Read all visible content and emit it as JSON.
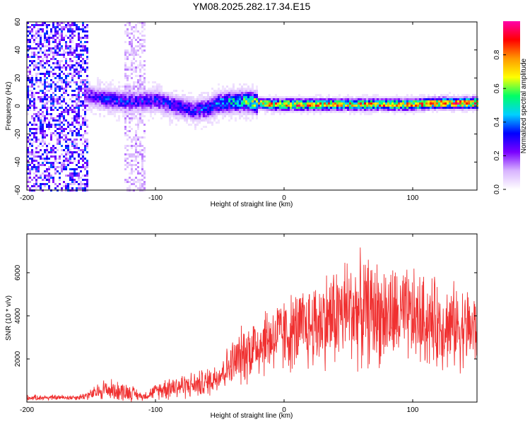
{
  "title": "YM08.2025.282.17.34.E15",
  "chart_data": [
    {
      "type": "heatmap",
      "title": "YM08.2025.282.17.34.E15",
      "xlabel": "Height of straight line (km)",
      "ylabel": "Frequency (Hz)",
      "xlim": [
        -200,
        150
      ],
      "ylim": [
        -60,
        60
      ],
      "xticks": [
        -200,
        -100,
        0,
        100
      ],
      "yticks": [
        -60,
        -40,
        -20,
        0,
        20,
        40,
        60
      ],
      "colorbar": {
        "label": "Normalized spectral amplitude",
        "range": [
          0,
          1
        ],
        "ticks": [
          0.0,
          0.2,
          0.4,
          0.6,
          0.8
        ],
        "colormap": [
          "#ffffff",
          "#d8b4ff",
          "#7a00ff",
          "#0000ff",
          "#00d0ff",
          "#00ff66",
          "#ffff00",
          "#ff9900",
          "#ff0000",
          "#ff00aa"
        ]
      },
      "ridge": {
        "description": "Dominant frequency band versus height",
        "x": [
          -155,
          -140,
          -120,
          -100,
          -85,
          -70,
          -60,
          -50,
          -40,
          -30,
          -20,
          -10,
          0,
          20,
          40,
          60,
          80,
          100,
          120,
          140,
          150
        ],
        "y": [
          8,
          5,
          3,
          4,
          0,
          -3,
          -2,
          2,
          3,
          3,
          2,
          1,
          1,
          1,
          1,
          1,
          1,
          1,
          2,
          2,
          2
        ],
        "peak_amplitude": [
          0.25,
          0.35,
          0.35,
          0.35,
          0.35,
          0.35,
          0.4,
          0.45,
          0.55,
          0.6,
          0.75,
          0.85,
          0.9,
          0.9,
          0.85,
          0.85,
          0.85,
          0.85,
          0.9,
          0.95,
          0.95
        ]
      },
      "noise_regions": [
        {
          "x_range": [
            -200,
            -152
          ],
          "y_range": [
            -60,
            60
          ],
          "amplitude": 0.15
        },
        {
          "x_range": [
            -124,
            -108
          ],
          "y_range": [
            -60,
            60
          ],
          "amplitude": 0.06
        }
      ]
    },
    {
      "type": "line",
      "xlabel": "Height of straight line (km)",
      "ylabel": "SNR (10 * v/v)",
      "xlim": [
        -200,
        150
      ],
      "ylim": [
        0,
        7800
      ],
      "xticks": [
        -200,
        -100,
        0,
        100
      ],
      "yticks": [
        2000,
        4000,
        6000
      ],
      "series": [
        {
          "name": "SNR",
          "color": "#f03030",
          "envelope": {
            "x": [
              -200,
              -160,
              -150,
              -140,
              -120,
              -110,
              -100,
              -90,
              -70,
              -60,
              -50,
              -40,
              -30,
              -20,
              -10,
              0,
              10,
              20,
              30,
              40,
              50,
              60,
              70,
              80,
              100,
              120,
              150
            ],
            "mean": [
              200,
              220,
              350,
              600,
              450,
              250,
              500,
              700,
              800,
              900,
              1300,
              1800,
              2300,
              2700,
              3000,
              3100,
              3300,
              3500,
              3800,
              4000,
              4300,
              4200,
              4200,
              4000,
              3900,
              3600,
              3400
            ],
            "spread": [
              150,
              150,
              300,
              600,
              500,
              200,
              400,
              700,
              700,
              800,
              900,
              1300,
              1700,
              1900,
              2000,
              2100,
              2200,
              2400,
              2600,
              2800,
              3000,
              3000,
              2900,
              2800,
              2600,
              2400,
              2200
            ]
          }
        }
      ]
    }
  ]
}
